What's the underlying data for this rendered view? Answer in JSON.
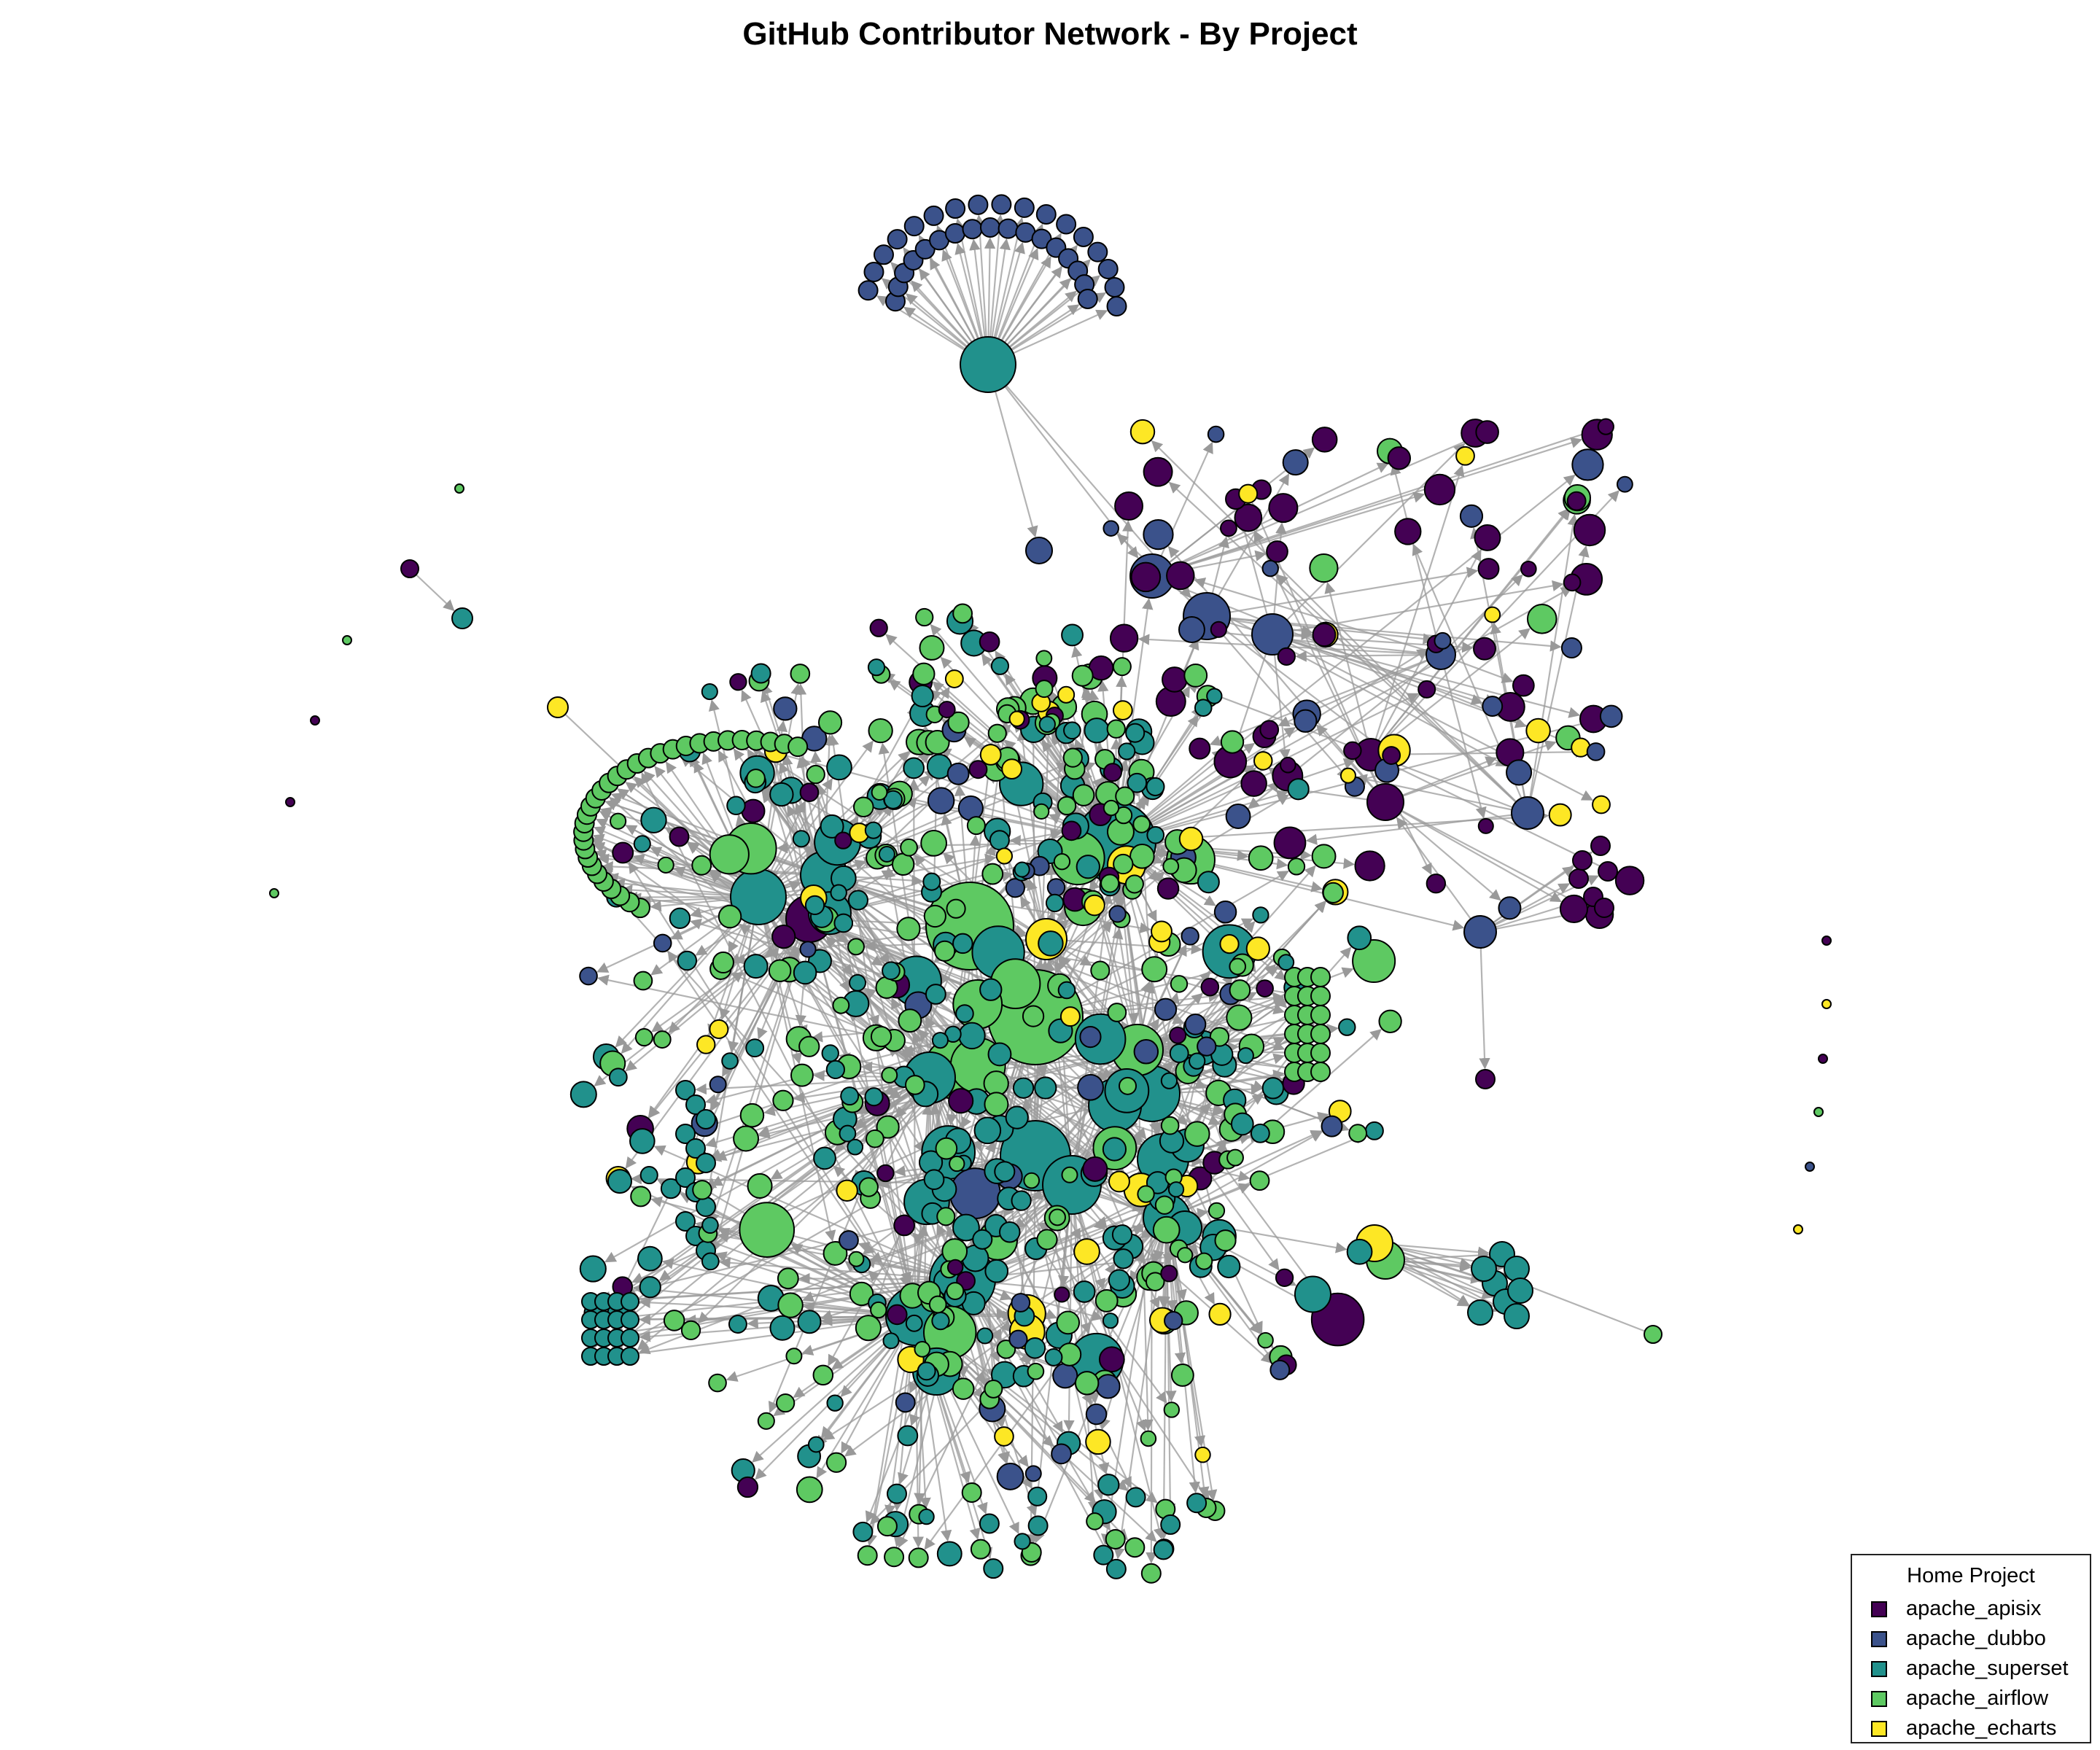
{
  "title": "GitHub Contributor Network - By Project",
  "legend": {
    "title": "Home Project",
    "items": [
      {
        "label": "apache_apisix",
        "color": "#440154"
      },
      {
        "label": "apache_dubbo",
        "color": "#3b528b"
      },
      {
        "label": "apache_superset",
        "color": "#21918c"
      },
      {
        "label": "apache_airflow",
        "color": "#5ec962"
      },
      {
        "label": "apache_echarts",
        "color": "#fde725"
      }
    ]
  },
  "edge_color": "#999999"
}
